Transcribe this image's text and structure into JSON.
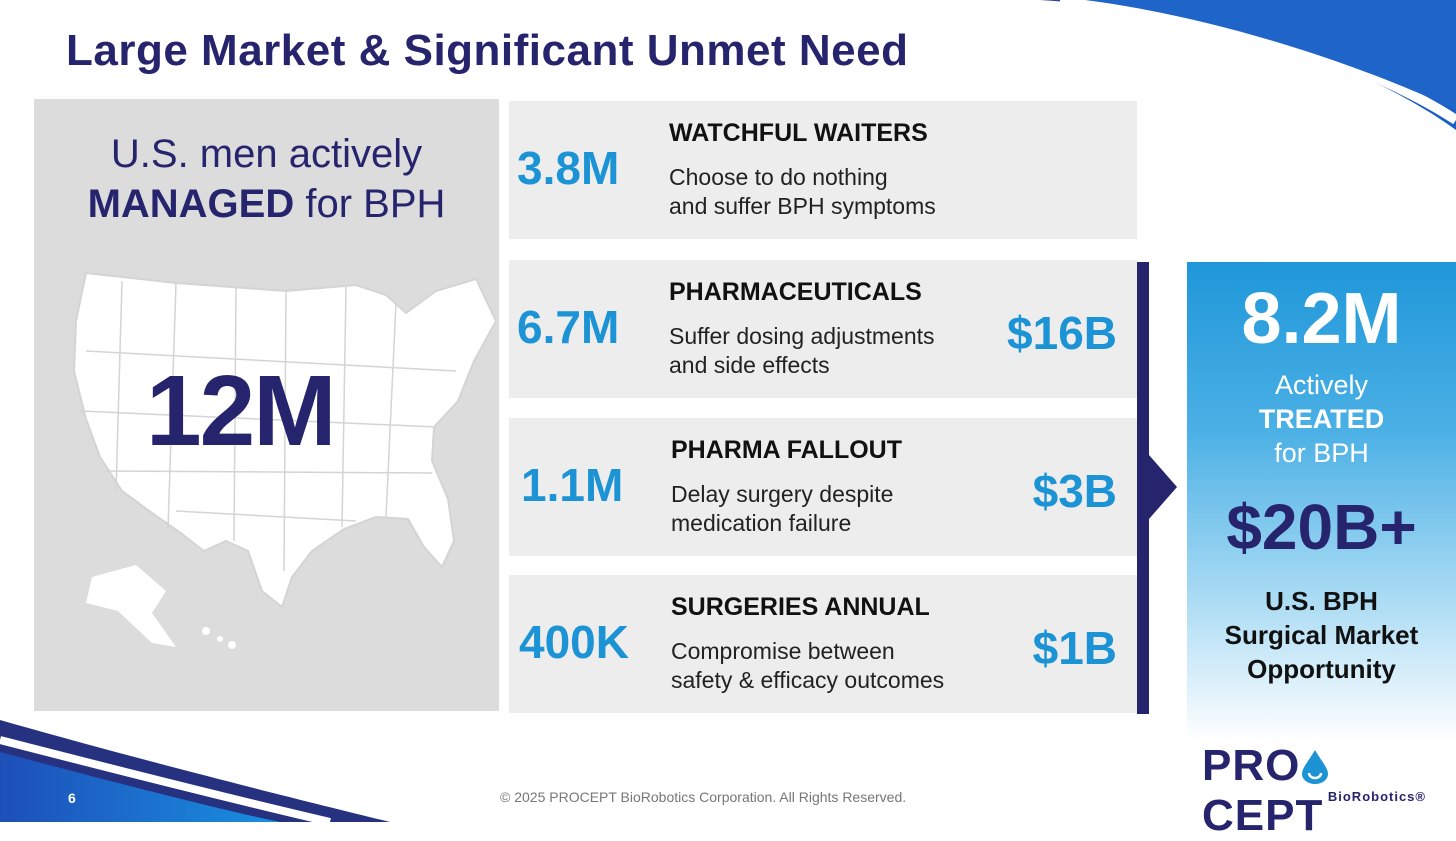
{
  "slide": {
    "title": "Large Market & Significant Unmet Need",
    "page_number": "6",
    "footer": "© 2025 PROCEPT BioRobotics Corporation. All Rights Reserved."
  },
  "left_panel": {
    "line1": "U.S. men actively",
    "line2_bold": "MANAGED",
    "line2_rest": " for BPH",
    "big_number": "12M",
    "map_icon": "us-map-icon"
  },
  "rows": [
    {
      "number": "3.8M",
      "heading": "WATCHFUL WAITERS",
      "desc1": "Choose to do nothing",
      "desc2": "and suffer BPH symptoms",
      "dollar": ""
    },
    {
      "number": "6.7M",
      "heading": "PHARMACEUTICALS",
      "desc1": "Suffer dosing adjustments",
      "desc2": "and side effects",
      "dollar": "$16B"
    },
    {
      "number": "1.1M",
      "heading": "PHARMA FALLOUT",
      "desc1": "Delay surgery despite",
      "desc2": "medication failure",
      "dollar": "$3B"
    },
    {
      "number": "400K",
      "heading": "SURGERIES ANNUAL",
      "desc1": "Compromise between",
      "desc2": "safety & efficacy outcomes",
      "dollar": "$1B"
    }
  ],
  "summary": {
    "big_number": "8.2M",
    "line1": "Actively",
    "line2": "TREATED",
    "line3": "for BPH",
    "market_value": "$20B+",
    "market1": "U.S. BPH",
    "market2": "Surgical Market",
    "market3": "Opportunity"
  },
  "logo": {
    "pre": "PRO",
    "post": "CEPT",
    "sub": "BioRobotics®",
    "icon": "water-drop-icon"
  },
  "colors": {
    "navy": "#27246e",
    "accent_blue": "#1b93d4"
  }
}
